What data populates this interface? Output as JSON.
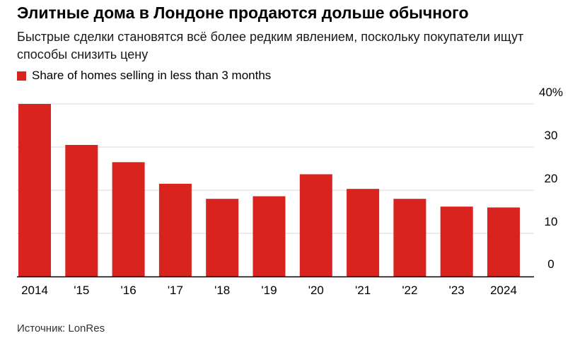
{
  "header": {
    "title": "Элитные дома в Лондоне продаются дольше обычного",
    "subtitle": "Быстрые сделки становятся всё более редким явлением, поскольку покупатели ищут способы снизить цену"
  },
  "legend": {
    "label": "Share of homes selling in less than 3 months"
  },
  "source": "Источник: LonRes",
  "colors": {
    "bar": "#d8231f",
    "grid": "#d9d9d9",
    "axis": "#000000"
  },
  "chart_data": {
    "type": "bar",
    "categories": [
      "2014",
      "'15",
      "'16",
      "'17",
      "'18",
      "'19",
      "'20",
      "'21",
      "'22",
      "'23",
      "2024"
    ],
    "series": [
      {
        "name": "Share of homes selling in less than 3 months",
        "values": [
          40.0,
          30.5,
          26.5,
          21.5,
          18.0,
          18.6,
          23.7,
          20.3,
          18.0,
          16.2,
          16.0
        ]
      }
    ],
    "y_ticks": [
      "0",
      "10",
      "20",
      "30",
      "40%"
    ],
    "ylim": [
      0,
      40
    ],
    "grid": true,
    "y_axis_position": "right",
    "legend_position": "top-left"
  }
}
